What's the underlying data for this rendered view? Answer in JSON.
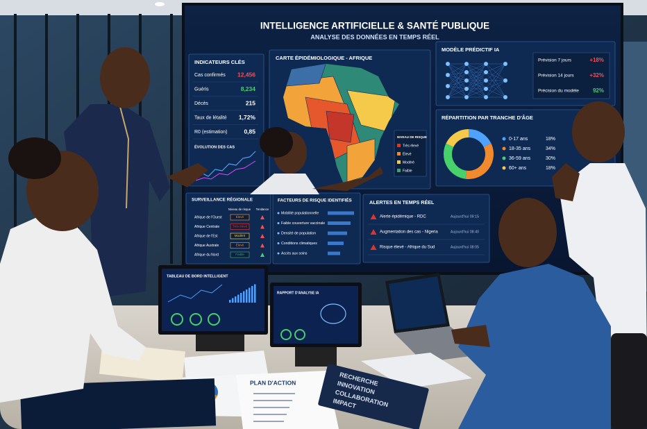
{
  "screen": {
    "title": "INTELLIGENCE ARTIFICIELLE & SANTÉ PUBLIQUE",
    "subtitle": "ANALYSE DES DONNÉES EN TEMPS RÉEL"
  },
  "indicators": {
    "title": "INDICATEURS CLÉS",
    "rows": [
      [
        "Cas confirmés",
        "12,456"
      ],
      [
        "Guéris",
        "8,234"
      ],
      [
        "Décès",
        "215"
      ],
      [
        "Taux de létalité",
        "1,72%"
      ],
      [
        "R0 (estimation)",
        "0,85"
      ]
    ],
    "chart_title": "ÉVOLUTION DES CAS"
  },
  "map": {
    "title": "CARTE ÉPIDÉMIOLOGIQUE - AFRIQUE",
    "legend_title": "NIVEAU DE RISQUE",
    "legend": [
      "Très élevé",
      "Élevé",
      "Modéré",
      "Faible"
    ]
  },
  "model": {
    "title": "MODÈLE PRÉDICTIF IA",
    "rows": [
      [
        "Prévision 7 jours",
        "+18%"
      ],
      [
        "Prévision 14 jours",
        "+32%"
      ],
      [
        "Précision du modèle",
        "92%"
      ]
    ]
  },
  "age": {
    "title": "RÉPARTITION PAR TRANCHE D'ÂGE",
    "rows": [
      [
        "0-17 ans",
        "18%"
      ],
      [
        "18-35 ans",
        "34%"
      ],
      [
        "36-59 ans",
        "30%"
      ],
      [
        "60+ ans",
        "18%"
      ]
    ]
  },
  "surveillance": {
    "title": "SURVEILLANCE RÉGIONALE",
    "headers": [
      "Niveau de risque",
      "Tendance"
    ],
    "rows": [
      [
        "Afrique de l'Ouest",
        "Élevé"
      ],
      [
        "Afrique Centrale",
        "Très élevé"
      ],
      [
        "Afrique de l'Est",
        "Modéré"
      ],
      [
        "Afrique Australe",
        "Élevé"
      ],
      [
        "Afrique du Nord",
        "Faible"
      ]
    ]
  },
  "factors": {
    "title": "FACTEURS DE RISQUE IDENTIFIÉS",
    "items": [
      "Mobilité populationnelle",
      "Faible couverture vaccinale",
      "Densité de population",
      "Conditions climatiques",
      "Accès aux soins"
    ]
  },
  "alerts": {
    "title": "ALERTES EN TEMPS RÉEL",
    "items": [
      [
        "Alerte épidémique - RDC",
        "Aujourd'hui 09:15"
      ],
      [
        "Augmentation des cas - Nigeria",
        "Aujourd'hui 08:40"
      ],
      [
        "Risque élevé - Afrique du Sud",
        "Aujourd'hui 08:05"
      ]
    ]
  },
  "monitors": [
    "TABLEAU DE BORD INTELLIGENT",
    "RAPPORT D'ANALYSE IA"
  ],
  "documents": {
    "plan_title": "PLAN D'ACTION",
    "book": [
      "RECHERCHE",
      "INNOVATION",
      "COLLABORATION",
      "IMPACT"
    ]
  }
}
